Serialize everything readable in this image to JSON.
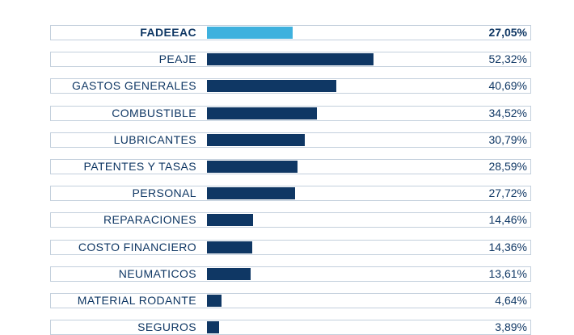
{
  "chart_data": {
    "type": "bar",
    "orientation": "horizontal",
    "title": "",
    "xlabel": "",
    "ylabel": "",
    "xlim": [
      0,
      100
    ],
    "grid": false,
    "legend": "none",
    "categories": [
      "FADEEAC",
      "PEAJE",
      "GASTOS GENERALES",
      "COMBUSTIBLE",
      "LUBRICANTES",
      "PATENTES Y TASAS",
      "PERSONAL",
      "REPARACIONES",
      "COSTO FINANCIERO",
      "NEUMATICOS",
      "MATERIAL RODANTE",
      "SEGUROS"
    ],
    "values": [
      27.05,
      52.32,
      40.69,
      34.52,
      30.79,
      28.59,
      27.72,
      14.46,
      14.36,
      13.61,
      4.64,
      3.89
    ],
    "value_labels": [
      "27,05%",
      "52,32%",
      "40,69%",
      "34,52%",
      "30,79%",
      "28,59%",
      "27,72%",
      "14,46%",
      "14,36%",
      "13,61%",
      "4,64%",
      "3,89%"
    ],
    "highlighted": "FADEEAC"
  },
  "colors": {
    "highlight_bar": "#3eb1de",
    "bar": "#0f3764",
    "text": "#0f3764",
    "border": "#c3cfdc"
  }
}
